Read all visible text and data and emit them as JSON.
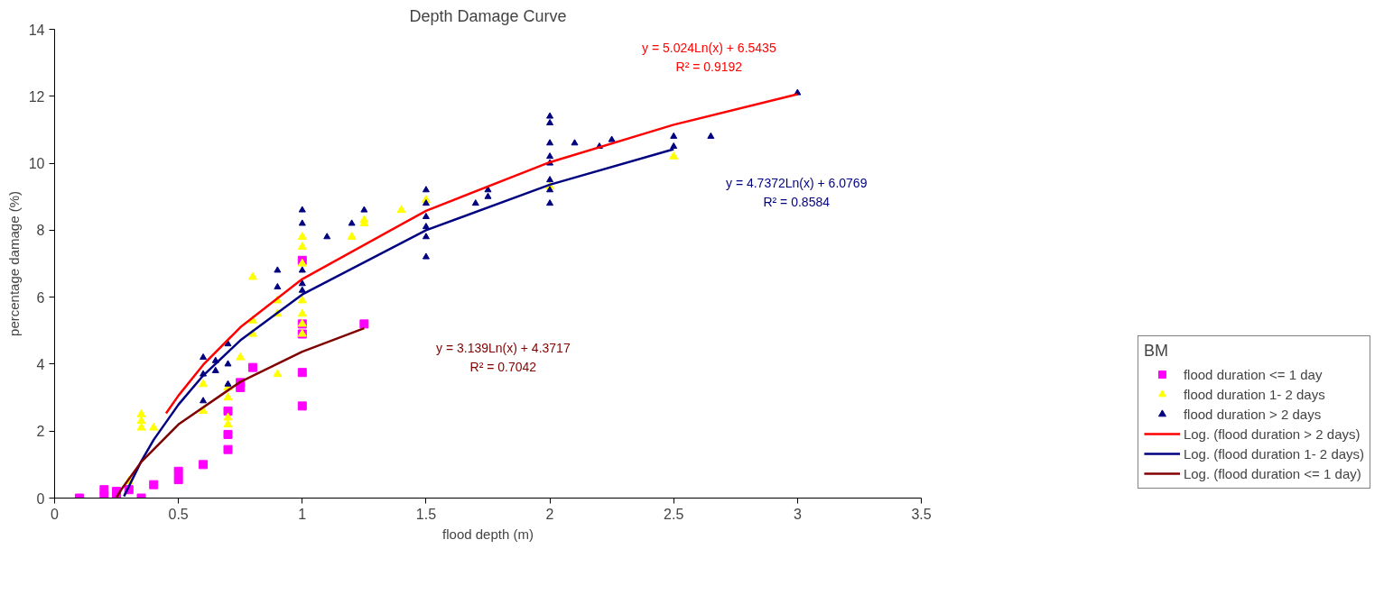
{
  "chart_data": {
    "type": "scatter",
    "title": "Depth Damage Curve",
    "xlabel": "flood depth (m)",
    "ylabel": "percentage damage (%)",
    "legend_title": "BM",
    "xlim": [
      0,
      3.5
    ],
    "xticks": [
      0,
      0.5,
      1,
      1.5,
      2,
      2.5,
      3,
      3.5
    ],
    "ylim": [
      0,
      14
    ],
    "yticks": [
      0,
      2,
      4,
      6,
      8,
      10,
      12,
      14
    ],
    "grid": false,
    "legend": "bottom right",
    "series": [
      {
        "name": "flood duration <= 1 day",
        "marker": "square",
        "color": "#ff00ff",
        "x": [
          0.1,
          0.2,
          0.2,
          0.25,
          0.25,
          0.3,
          0.35,
          0.4,
          0.5,
          0.5,
          0.6,
          0.7,
          0.7,
          0.7,
          0.75,
          0.75,
          0.8,
          1,
          1,
          1,
          1,
          1,
          1.25
        ],
        "values": [
          0,
          0.25,
          0.05,
          0.2,
          0.05,
          0.25,
          0,
          0.4,
          0.8,
          0.55,
          1.0,
          2.6,
          1.9,
          1.45,
          3.3,
          3.45,
          3.9,
          7.1,
          5.2,
          4.9,
          3.75,
          2.75,
          5.2
        ]
      },
      {
        "name": "flood duration 1- 2 days",
        "marker": "triangle",
        "color": "#ffff00",
        "x": [
          0.3,
          0.35,
          0.35,
          0.35,
          0.4,
          0.6,
          0.6,
          0.7,
          0.7,
          0.7,
          0.7,
          0.75,
          0.8,
          0.8,
          0.8,
          0.9,
          0.9,
          0.9,
          1,
          1,
          1,
          1,
          1,
          1,
          1,
          1.2,
          1.25,
          1.25,
          1.4,
          1.5,
          2,
          2.5
        ],
        "values": [
          0.5,
          2.5,
          2.3,
          2.1,
          2.1,
          3.4,
          2.6,
          3.3,
          3.0,
          2.4,
          2.2,
          4.2,
          6.6,
          5.3,
          4.9,
          5.9,
          5.5,
          3.7,
          7.8,
          7.5,
          7.0,
          5.9,
          5.5,
          5.2,
          4.9,
          7.8,
          8.3,
          8.2,
          8.6,
          8.9,
          9.3,
          10.2
        ]
      },
      {
        "name": "flood duration > 2 days",
        "marker": "triangle",
        "color": "#000080",
        "x": [
          0.6,
          0.6,
          0.6,
          0.65,
          0.65,
          0.7,
          0.7,
          0.7,
          0.9,
          0.9,
          1,
          1,
          1,
          1,
          1,
          1.1,
          1.2,
          1.25,
          1.5,
          1.5,
          1.5,
          1.5,
          1.5,
          1.5,
          1.7,
          1.75,
          1.75,
          2,
          2,
          2,
          2,
          2,
          2,
          2,
          2,
          2.1,
          2.2,
          2.25,
          2.5,
          2.5,
          2.65,
          3
        ],
        "values": [
          4.2,
          3.7,
          2.9,
          3.8,
          4.1,
          4.6,
          4.0,
          3.4,
          6.8,
          6.3,
          8.6,
          8.2,
          6.8,
          6.4,
          6.2,
          7.8,
          8.2,
          8.6,
          9.2,
          8.8,
          8.4,
          8.1,
          7.8,
          7.2,
          8.8,
          9.2,
          9.0,
          11.4,
          11.2,
          10.6,
          10.2,
          10.0,
          9.5,
          9.2,
          8.8,
          10.6,
          10.5,
          10.7,
          10.8,
          10.5,
          10.8,
          12.1
        ]
      },
      {
        "name": "Log. (flood duration > 2 days)",
        "type": "line",
        "marker": "none",
        "color": "#ff0000",
        "x": [
          0.45,
          0.5,
          0.6,
          0.75,
          1,
          1.5,
          2,
          2.5,
          3
        ],
        "values": [
          2.53,
          3.06,
          3.98,
          5.1,
          6.54,
          8.58,
          10.03,
          11.15,
          12.06
        ]
      },
      {
        "name": "Log. (flood duration 1- 2 days)",
        "type": "line",
        "marker": "none",
        "color": "#000080",
        "x": [
          0.28,
          0.35,
          0.4,
          0.5,
          0.6,
          0.75,
          1,
          1.5,
          2,
          2.5
        ],
        "values": [
          0.05,
          1.1,
          1.74,
          2.79,
          3.66,
          4.71,
          6.08,
          8.0,
          9.36,
          10.42
        ]
      },
      {
        "name": "Log. (flood duration <= 1 day)",
        "type": "line",
        "marker": "none",
        "color": "#800000",
        "x": [
          0.25,
          0.27,
          0.35,
          0.5,
          0.75,
          1,
          1.25
        ],
        "values": [
          0.02,
          0.26,
          1.08,
          2.2,
          3.47,
          4.37,
          5.07
        ]
      }
    ],
    "annotations": [
      "y = 5.024Ln(x) + 6.5435",
      "R² = 0.9192",
      "y = 4.7372Ln(x) + 6.0769",
      "R² = 0.8584",
      "y = 3.139Ln(x) + 4.3717",
      "R² = 0.7042"
    ]
  }
}
